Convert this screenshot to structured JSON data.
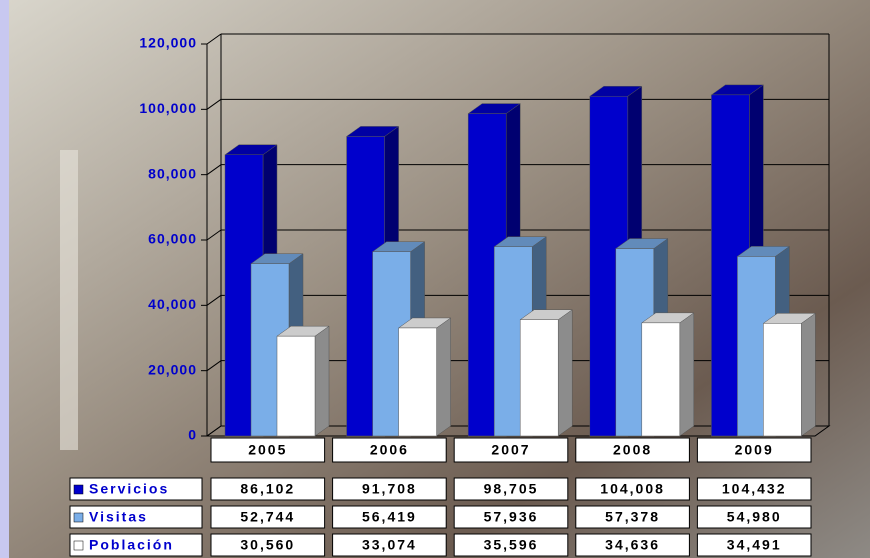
{
  "chart_data": {
    "type": "bar3d",
    "categories": [
      "2005",
      "2006",
      "2007",
      "2008",
      "2009"
    ],
    "series": [
      {
        "name": "Servicios",
        "color": "#0000cc",
        "values": [
          86102,
          91708,
          98705,
          104008,
          104432
        ],
        "value_labels": [
          "86,102",
          "91,708",
          "98,705",
          "104,008",
          "104,432"
        ]
      },
      {
        "name": "Visitas",
        "color": "#7aaee8",
        "values": [
          52744,
          56419,
          57936,
          57378,
          54980
        ],
        "value_labels": [
          "52,744",
          "56,419",
          "57,936",
          "57,378",
          "54,980"
        ]
      },
      {
        "name": "Población",
        "color": "#ffffff",
        "values": [
          30560,
          33074,
          35596,
          34636,
          34491
        ],
        "value_labels": [
          "30,560",
          "33,074",
          "35,596",
          "34,636",
          "34,491"
        ]
      }
    ],
    "ylim": [
      0,
      120000
    ],
    "yticks": [
      0,
      {
        "value": 20000,
        "label": "20,000"
      },
      {
        "value": 40000,
        "label": "40,000"
      },
      {
        "value": 60000,
        "label": "60,000"
      },
      {
        "value": 80000,
        "label": "80,000"
      },
      {
        "value": 100000,
        "label": "100,000"
      },
      {
        "value": 120000,
        "label": "120,000"
      }
    ],
    "grid": true
  }
}
